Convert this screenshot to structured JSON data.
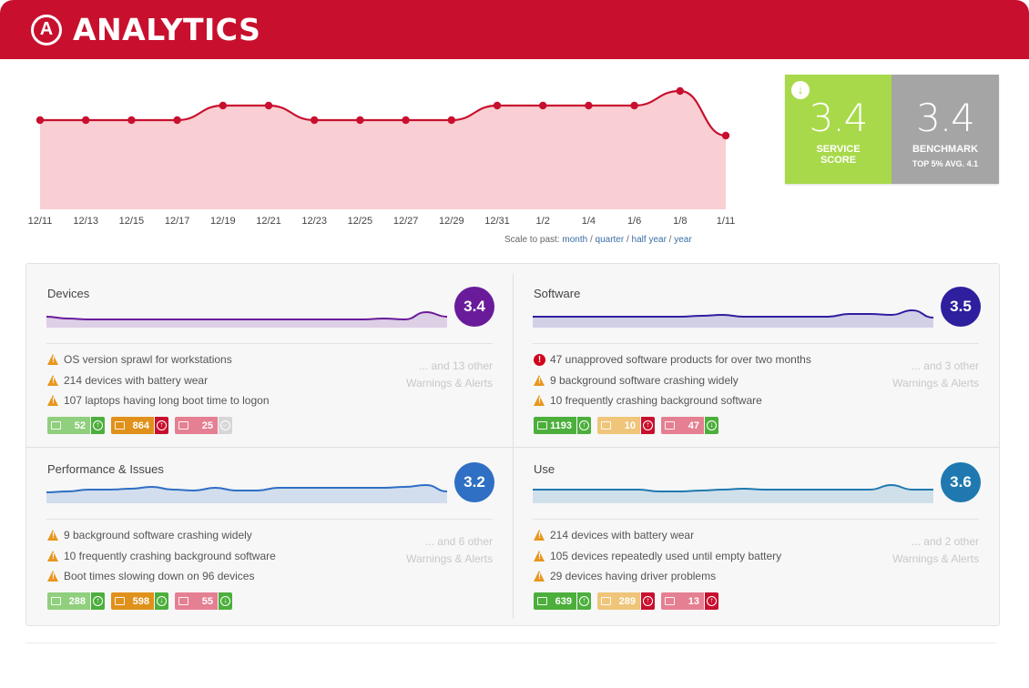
{
  "app": {
    "title": "ANALYTICS",
    "logo_letter": "A"
  },
  "trend": {
    "x_labels": [
      "12/11",
      "12/13",
      "12/15",
      "12/17",
      "12/19",
      "12/21",
      "12/23",
      "12/25",
      "12/27",
      "12/29",
      "12/31",
      "1/2",
      "1/4",
      "1/6",
      "1/8",
      "1/11"
    ],
    "scale_prefix": "Scale to past: ",
    "scale_links": [
      "month",
      "quarter",
      "half year",
      "year"
    ],
    "separator": " / ",
    "fill_color": "#f9cfd3",
    "line_color": "#c8102e"
  },
  "score": {
    "service_value": "3.4",
    "service_label_1": "SERVICE",
    "service_label_2": "SCORE",
    "benchmark_value": "3.4",
    "benchmark_label": "BENCHMARK",
    "benchmark_sub": "TOP 5% AVG. 4.1",
    "service_color": "#a8d94a",
    "benchmark_color": "#a5a5a5"
  },
  "quadrants": [
    {
      "title": "Devices",
      "score": "3.4",
      "color": "#6a1b9a",
      "alerts": [
        {
          "type": "warning",
          "text": "OS version sprawl for workstations"
        },
        {
          "type": "warning",
          "text": "214 devices with battery wear"
        },
        {
          "type": "warning",
          "text": "107 laptops having long boot time to logon"
        }
      ],
      "more_1": "... and 13 other",
      "more_2": "Warnings & Alerts",
      "chips": [
        {
          "value": "52",
          "color": "lgreen",
          "arrow": "up",
          "arrow_color": "green"
        },
        {
          "value": "864",
          "color": "orange",
          "arrow": "up",
          "arrow_color": "red"
        },
        {
          "value": "25",
          "color": "pink",
          "arrow": "neutral",
          "arrow_color": "gray-arr"
        }
      ]
    },
    {
      "title": "Software",
      "score": "3.5",
      "color": "#2e1f9e",
      "alerts": [
        {
          "type": "critical",
          "text": "47 unapproved software products for over two months"
        },
        {
          "type": "warning",
          "text": "9 background software crashing widely"
        },
        {
          "type": "warning",
          "text": "10 frequently crashing background software"
        }
      ],
      "more_1": "... and 3 other",
      "more_2": "Warnings & Alerts",
      "chips": [
        {
          "value": "1193",
          "color": "green",
          "arrow": "up",
          "arrow_color": "green"
        },
        {
          "value": "10",
          "color": "lorange",
          "arrow": "up",
          "arrow_color": "red"
        },
        {
          "value": "47",
          "color": "pink",
          "arrow": "down",
          "arrow_color": "green"
        }
      ]
    },
    {
      "title": "Performance & Issues",
      "score": "3.2",
      "color": "#2f6fc4",
      "alerts": [
        {
          "type": "warning",
          "text": "9 background software crashing widely"
        },
        {
          "type": "warning",
          "text": "10 frequently crashing background software"
        },
        {
          "type": "warning",
          "text": "Boot times slowing down on 96 devices"
        }
      ],
      "more_1": "... and 6 other",
      "more_2": "Warnings & Alerts",
      "chips": [
        {
          "value": "288",
          "color": "lgreen",
          "arrow": "up",
          "arrow_color": "green"
        },
        {
          "value": "598",
          "color": "orange",
          "arrow": "down",
          "arrow_color": "green"
        },
        {
          "value": "55",
          "color": "pink",
          "arrow": "down",
          "arrow_color": "green"
        }
      ]
    },
    {
      "title": "Use",
      "score": "3.6",
      "color": "#1f79b0",
      "alerts": [
        {
          "type": "warning",
          "text": "214 devices with battery wear"
        },
        {
          "type": "warning",
          "text": "105 devices repeatedly used until empty battery"
        },
        {
          "type": "warning",
          "text": "29 devices having driver problems"
        }
      ],
      "more_1": "... and 2 other",
      "more_2": "Warnings & Alerts",
      "chips": [
        {
          "value": "639",
          "color": "green",
          "arrow": "up",
          "arrow_color": "green"
        },
        {
          "value": "289",
          "color": "lorange",
          "arrow": "up",
          "arrow_color": "red"
        },
        {
          "value": "13",
          "color": "pink",
          "arrow": "up",
          "arrow_color": "red"
        }
      ]
    }
  ]
}
